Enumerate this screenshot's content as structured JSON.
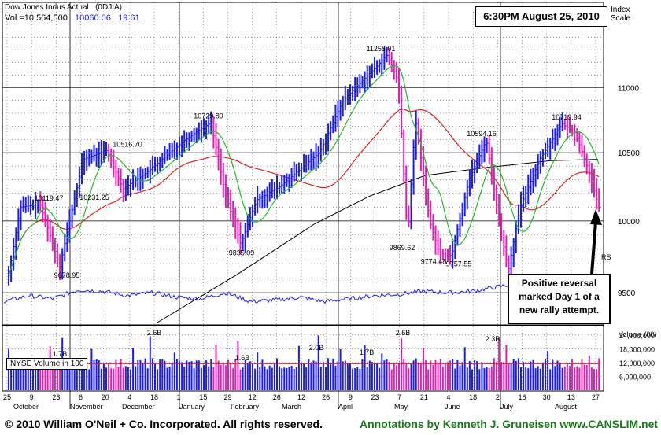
{
  "header": {
    "index_name": "Dow Jones Indus Actual",
    "symbol": "(0DJIA)",
    "vol_label": "Vol =10,564,500",
    "last_price": "10060.06",
    "change": "19.61",
    "timestamp": "6:30PM August 25, 2010",
    "scale_label_1": "Index",
    "scale_label_2": "Scale"
  },
  "annotation_box": {
    "text": "Positive reversal marked Day 1 of a new rally attempt.",
    "line1": "Positive reversal",
    "line2": "marked Day 1 of a",
    "line3": "new rally attempt."
  },
  "volume_panel": {
    "label": "NYSE Volume in 100",
    "axis_title": "Volume (00)",
    "axis_ticks": [
      "24,000,000",
      "18,000,000",
      "12,000,000",
      "6,000,000"
    ],
    "volume_callouts": [
      "1.7B",
      "2.6B",
      "1.6B",
      "2.0B",
      "1.7B",
      "2.6B",
      "2.3B"
    ]
  },
  "footer": {
    "copyright": "© 2010 William O'Neil + Co. Incorporated. All rights reserved.",
    "credit": "Annotations by Kenneth J. Gruneisen www.CANSLIM.net"
  },
  "colors": {
    "up_bar": "#1a1aff",
    "down_bar": "#e020b0",
    "ma50": "#22bb22",
    "ma200_red": "#dd2222",
    "ma200_black": "#000000",
    "rs_line": "#1a1aff",
    "footer_credit": "#1a7a1a"
  },
  "chart_data": {
    "type": "line",
    "title": "Dow Jones Indus Actual (0DJIA)",
    "ylabel": "Index Scale",
    "ylim": [
      9300,
      11450
    ],
    "price_axis_ticks": [
      9500,
      10000,
      10500,
      11000
    ],
    "x_tick_labels": [
      "25",
      "9",
      "23",
      "6",
      "20",
      "4",
      "18",
      "1",
      "15",
      "29",
      "12",
      "26",
      "12",
      "26",
      "9",
      "23",
      "7",
      "21",
      "4",
      "18",
      "2",
      "16",
      "30",
      "13",
      "27"
    ],
    "month_labels": [
      "October",
      "November",
      "December",
      "January",
      "February",
      "March",
      "April",
      "May",
      "June",
      "July",
      "August"
    ],
    "price_labels": [
      {
        "text": "10119.47",
        "value": 10119.47
      },
      {
        "text": "9678.95",
        "value": 9678.95
      },
      {
        "text": "10516.70",
        "value": 10516.7
      },
      {
        "text": "10231.25",
        "value": 10231.25
      },
      {
        "text": "10729.89",
        "value": 10729.89
      },
      {
        "text": "9835.09",
        "value": 9835.09
      },
      {
        "text": "11258.01",
        "value": 11258.01
      },
      {
        "text": "9869.62",
        "value": 9869.62
      },
      {
        "text": "9774.48",
        "value": 9774.48
      },
      {
        "text": "9757.55",
        "value": 9757.55
      },
      {
        "text": "10594.16",
        "value": 10594.16
      },
      {
        "text": "10719.94",
        "value": 10719.94
      }
    ],
    "series": [
      {
        "name": "RS",
        "values": [
          9440,
          9480,
          9460,
          9520,
          9510,
          9480,
          9500,
          9470,
          9460,
          9500,
          9440,
          9450,
          9470,
          9440,
          9460,
          9480,
          9490,
          9510,
          9500,
          9510,
          9540,
          9570,
          9560,
          9580,
          9550
        ]
      }
    ],
    "grid": true,
    "legend": "none"
  }
}
